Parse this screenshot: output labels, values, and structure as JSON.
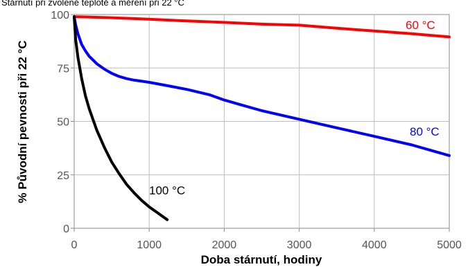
{
  "chart_data": {
    "type": "line",
    "title": "Stárnutí při zvolené teplotě a měření při 22 °C",
    "xlabel": "Doba stárnutí, hodiny",
    "ylabel": "% Původní pevnosti při 22 °C",
    "xlim": [
      0,
      5000
    ],
    "ylim": [
      0,
      100
    ],
    "xticks": [
      0,
      1000,
      2000,
      3000,
      4000,
      5000
    ],
    "yticks": [
      0,
      25,
      50,
      75,
      100
    ],
    "grid": true,
    "legend": "inline labels next to each curve",
    "series": [
      {
        "name": "60 °C",
        "color": "#ff0000",
        "x": [
          0,
          500,
          1000,
          1500,
          2000,
          2500,
          3000,
          3500,
          4000,
          4500,
          5000
        ],
        "y": [
          99,
          98.5,
          97.8,
          97,
          96.3,
          95.5,
          95,
          93.6,
          92.3,
          91,
          89.5
        ]
      },
      {
        "name": "80 °C",
        "color": "#0000ff",
        "x": [
          0,
          20,
          50,
          100,
          150,
          200,
          300,
          400,
          500,
          600,
          700,
          800,
          900,
          1000,
          1200,
          1500,
          1800,
          2000,
          2200,
          2500,
          3000,
          3500,
          4000,
          4500,
          5000
        ],
        "y": [
          99,
          95,
          91,
          86,
          83,
          80.5,
          77,
          74.5,
          72.5,
          71,
          70,
          69.3,
          68.8,
          68.3,
          67,
          65,
          62.5,
          60,
          58,
          55,
          51,
          47,
          43,
          39,
          34
        ]
      },
      {
        "name": "100 °C",
        "color": "#000000",
        "x": [
          0,
          20,
          50,
          100,
          150,
          200,
          300,
          400,
          500,
          600,
          700,
          800,
          900,
          1000,
          1100,
          1240
        ],
        "y": [
          99,
          88,
          80,
          70,
          62,
          56,
          46,
          38,
          31,
          25.5,
          20.5,
          16.5,
          13,
          10,
          7.5,
          4
        ]
      }
    ]
  }
}
